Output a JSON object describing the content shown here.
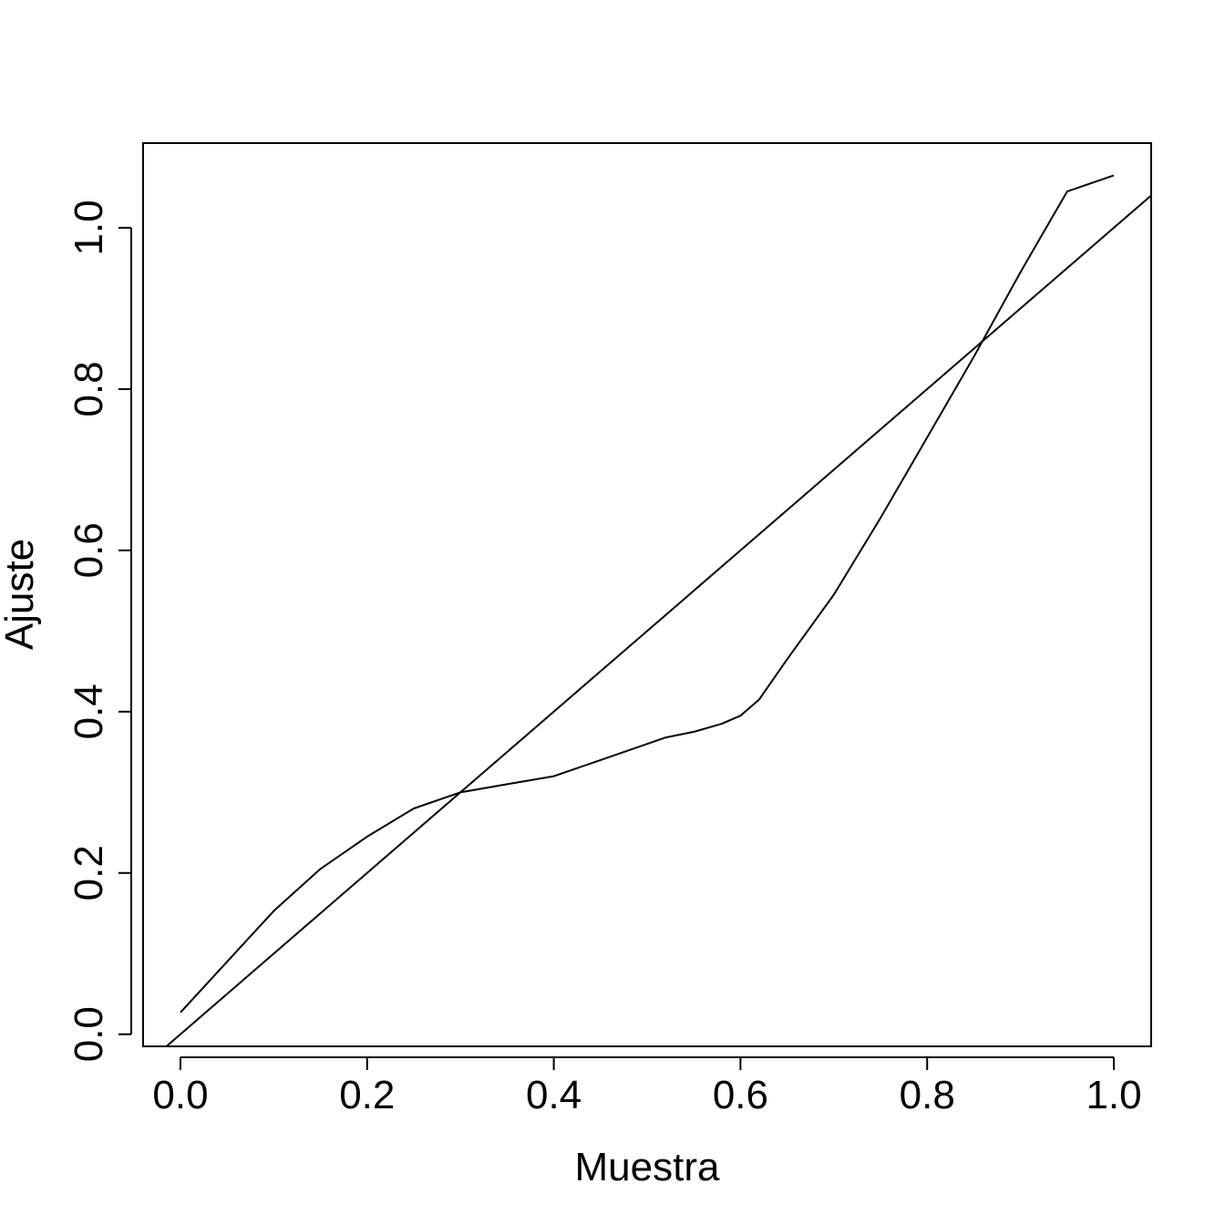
{
  "chart_data": {
    "type": "line",
    "title": "",
    "xlabel": "Muestra",
    "ylabel": "Ajuste",
    "xlim": [
      -0.04,
      1.04
    ],
    "ylim": [
      -0.015,
      1.105
    ],
    "x_ticks": [
      "0.0",
      "0.2",
      "0.4",
      "0.6",
      "0.8",
      "1.0"
    ],
    "y_ticks": [
      "0.0",
      "0.2",
      "0.4",
      "0.6",
      "0.8",
      "1.0"
    ],
    "grid": false,
    "legend": "none",
    "line_color": "#000000",
    "series": [
      {
        "x": [
          -0.015,
          1.04
        ],
        "y": [
          -0.015,
          1.04
        ]
      },
      {
        "x": [
          0.0,
          0.05,
          0.1,
          0.15,
          0.2,
          0.25,
          0.3,
          0.35,
          0.4,
          0.45,
          0.5,
          0.52,
          0.55,
          0.58,
          0.6,
          0.62,
          0.65,
          0.7,
          0.75,
          0.8,
          0.85,
          0.9,
          0.95,
          1.0
        ],
        "y": [
          0.027,
          0.09,
          0.153,
          0.205,
          0.245,
          0.28,
          0.3,
          0.31,
          0.32,
          0.34,
          0.36,
          0.368,
          0.375,
          0.385,
          0.395,
          0.415,
          0.465,
          0.545,
          0.64,
          0.74,
          0.84,
          0.945,
          1.045,
          1.065
        ]
      }
    ]
  }
}
